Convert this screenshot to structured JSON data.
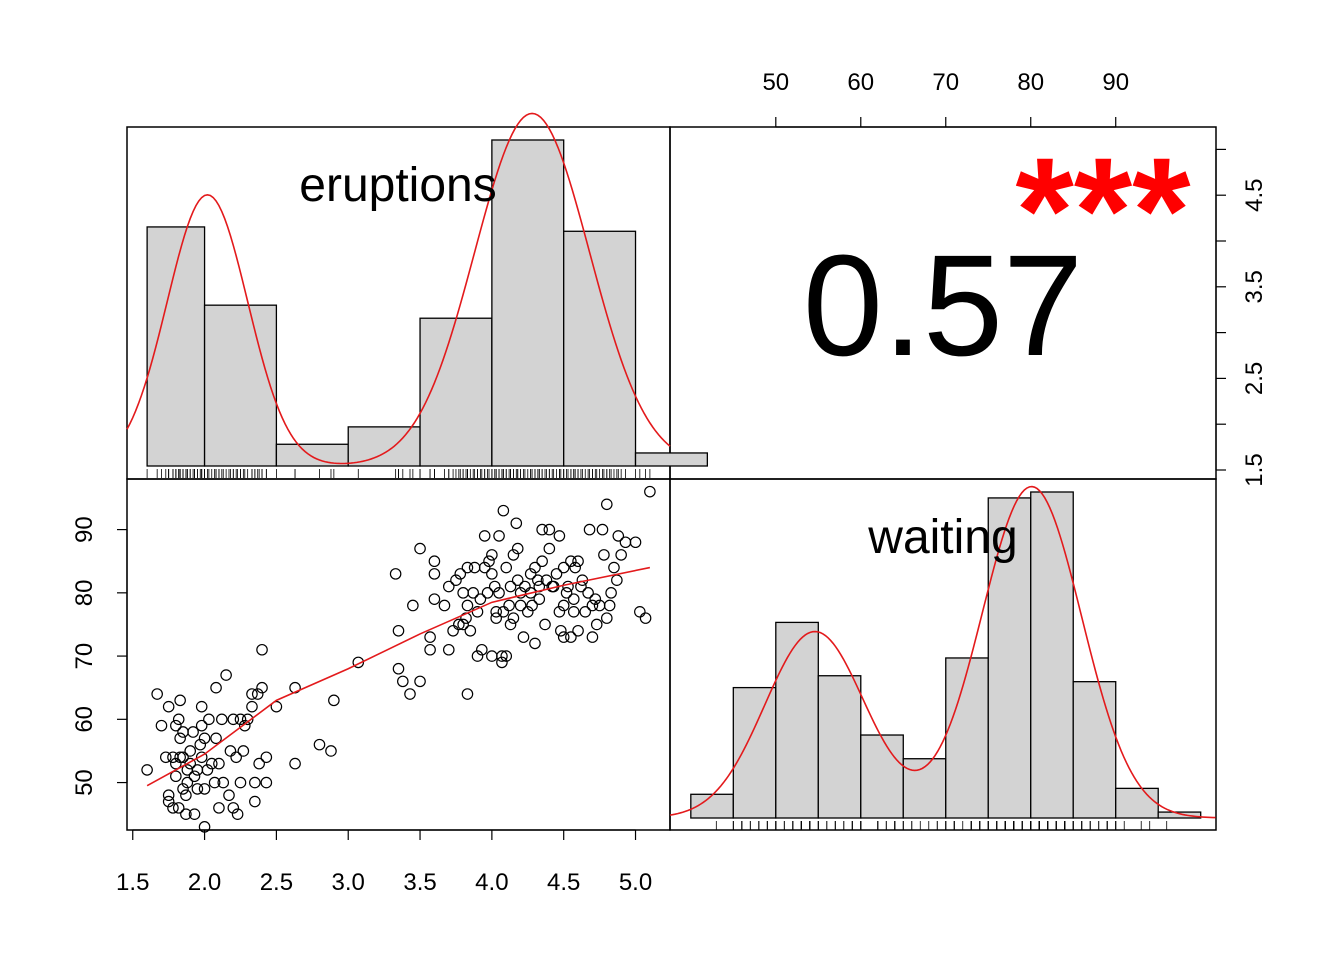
{
  "chart_data": [
    {
      "panel": "eruptions-histogram",
      "type": "bar",
      "label": "eruptions",
      "bin_edges": [
        1.6,
        2.0,
        2.5,
        3.0,
        3.5,
        4.0,
        4.5,
        5.0,
        5.5
      ],
      "counts": [
        55,
        37,
        5,
        9,
        34,
        75,
        54,
        3
      ],
      "density_curve_color": "#e31a1c",
      "rug": true
    },
    {
      "panel": "correlation",
      "type": "table",
      "value": "0.57",
      "significance": "***",
      "significance_color": "#ff0000"
    },
    {
      "panel": "scatter",
      "type": "scatter",
      "x_variable": "eruptions",
      "y_variable": "waiting",
      "x_ticks": [
        "1.5",
        "2.0",
        "2.5",
        "3.0",
        "3.5",
        "4.0",
        "4.5",
        "5.0"
      ],
      "y_ticks": [
        "50",
        "60",
        "70",
        "80",
        "90"
      ],
      "xlim": [
        1.46,
        5.24
      ],
      "ylim": [
        42.5,
        98.0
      ],
      "points": [
        [
          1.6,
          52
        ],
        [
          1.67,
          64
        ],
        [
          1.7,
          59
        ],
        [
          1.73,
          54
        ],
        [
          1.75,
          48
        ],
        [
          1.75,
          47
        ],
        [
          1.75,
          62
        ],
        [
          1.78,
          54
        ],
        [
          1.78,
          46
        ],
        [
          1.8,
          51
        ],
        [
          1.8,
          53
        ],
        [
          1.8,
          59
        ],
        [
          1.82,
          46
        ],
        [
          1.82,
          60
        ],
        [
          1.83,
          54
        ],
        [
          1.83,
          57
        ],
        [
          1.83,
          63
        ],
        [
          1.85,
          58
        ],
        [
          1.85,
          54
        ],
        [
          1.85,
          49
        ],
        [
          1.87,
          45
        ],
        [
          1.87,
          48
        ],
        [
          1.88,
          52
        ],
        [
          1.88,
          50
        ],
        [
          1.9,
          55
        ],
        [
          1.9,
          53
        ],
        [
          1.92,
          58
        ],
        [
          1.93,
          51
        ],
        [
          1.93,
          45
        ],
        [
          1.95,
          49
        ],
        [
          1.95,
          52
        ],
        [
          1.97,
          56
        ],
        [
          1.98,
          54
        ],
        [
          1.98,
          59
        ],
        [
          1.98,
          62
        ],
        [
          2.0,
          57
        ],
        [
          2.0,
          43
        ],
        [
          2.0,
          49
        ],
        [
          2.02,
          52
        ],
        [
          2.03,
          60
        ],
        [
          2.05,
          53
        ],
        [
          2.07,
          50
        ],
        [
          2.08,
          65
        ],
        [
          2.08,
          57
        ],
        [
          2.1,
          53
        ],
        [
          2.1,
          46
        ],
        [
          2.12,
          60
        ],
        [
          2.13,
          50
        ],
        [
          2.15,
          67
        ],
        [
          2.17,
          48
        ],
        [
          2.18,
          55
        ],
        [
          2.2,
          46
        ],
        [
          2.2,
          60
        ],
        [
          2.22,
          54
        ],
        [
          2.23,
          45
        ],
        [
          2.25,
          60
        ],
        [
          2.25,
          50
        ],
        [
          2.27,
          55
        ],
        [
          2.28,
          59
        ],
        [
          2.3,
          60
        ],
        [
          2.33,
          62
        ],
        [
          2.33,
          64
        ],
        [
          2.35,
          50
        ],
        [
          2.35,
          47
        ],
        [
          2.37,
          64
        ],
        [
          2.38,
          53
        ],
        [
          2.4,
          71
        ],
        [
          2.4,
          65
        ],
        [
          2.43,
          54
        ],
        [
          2.43,
          50
        ],
        [
          2.5,
          62
        ],
        [
          2.63,
          53
        ],
        [
          2.63,
          65
        ],
        [
          2.8,
          56
        ],
        [
          2.88,
          55
        ],
        [
          2.9,
          63
        ],
        [
          3.07,
          69
        ],
        [
          3.33,
          83
        ],
        [
          3.35,
          68
        ],
        [
          3.35,
          74
        ],
        [
          3.38,
          66
        ],
        [
          3.43,
          64
        ],
        [
          3.45,
          78
        ],
        [
          3.5,
          87
        ],
        [
          3.5,
          66
        ],
        [
          3.57,
          73
        ],
        [
          3.57,
          71
        ],
        [
          3.6,
          79
        ],
        [
          3.6,
          83
        ],
        [
          3.6,
          85
        ],
        [
          3.67,
          78
        ],
        [
          3.7,
          81
        ],
        [
          3.7,
          71
        ],
        [
          3.73,
          74
        ],
        [
          3.75,
          82
        ],
        [
          3.77,
          75
        ],
        [
          3.78,
          83
        ],
        [
          3.8,
          80
        ],
        [
          3.8,
          75
        ],
        [
          3.82,
          76
        ],
        [
          3.83,
          64
        ],
        [
          3.83,
          78
        ],
        [
          3.83,
          84
        ],
        [
          3.85,
          74
        ],
        [
          3.87,
          80
        ],
        [
          3.88,
          84
        ],
        [
          3.9,
          70
        ],
        [
          3.9,
          77
        ],
        [
          3.92,
          79
        ],
        [
          3.93,
          71
        ],
        [
          3.95,
          84
        ],
        [
          3.95,
          89
        ],
        [
          3.97,
          80
        ],
        [
          3.98,
          85
        ],
        [
          4.0,
          70
        ],
        [
          4.0,
          86
        ],
        [
          4.0,
          83
        ],
        [
          4.02,
          81
        ],
        [
          4.03,
          77
        ],
        [
          4.03,
          76
        ],
        [
          4.05,
          80
        ],
        [
          4.05,
          89
        ],
        [
          4.07,
          69
        ],
        [
          4.07,
          70
        ],
        [
          4.08,
          93
        ],
        [
          4.08,
          77
        ],
        [
          4.1,
          84
        ],
        [
          4.1,
          70
        ],
        [
          4.12,
          78
        ],
        [
          4.13,
          75
        ],
        [
          4.13,
          81
        ],
        [
          4.15,
          86
        ],
        [
          4.15,
          76
        ],
        [
          4.17,
          91
        ],
        [
          4.18,
          87
        ],
        [
          4.18,
          82
        ],
        [
          4.2,
          78
        ],
        [
          4.2,
          80
        ],
        [
          4.22,
          73
        ],
        [
          4.23,
          81
        ],
        [
          4.25,
          77
        ],
        [
          4.27,
          83
        ],
        [
          4.27,
          80
        ],
        [
          4.28,
          78
        ],
        [
          4.3,
          84
        ],
        [
          4.3,
          72
        ],
        [
          4.32,
          82
        ],
        [
          4.33,
          79
        ],
        [
          4.33,
          81
        ],
        [
          4.35,
          85
        ],
        [
          4.35,
          90
        ],
        [
          4.37,
          75
        ],
        [
          4.38,
          82
        ],
        [
          4.4,
          90
        ],
        [
          4.4,
          87
        ],
        [
          4.42,
          81
        ],
        [
          4.43,
          81
        ],
        [
          4.45,
          83
        ],
        [
          4.47,
          89
        ],
        [
          4.47,
          77
        ],
        [
          4.48,
          74
        ],
        [
          4.5,
          73
        ],
        [
          4.5,
          78
        ],
        [
          4.5,
          84
        ],
        [
          4.52,
          80
        ],
        [
          4.53,
          81
        ],
        [
          4.55,
          85
        ],
        [
          4.55,
          73
        ],
        [
          4.57,
          79
        ],
        [
          4.57,
          77
        ],
        [
          4.58,
          84
        ],
        [
          4.6,
          85
        ],
        [
          4.6,
          74
        ],
        [
          4.62,
          81
        ],
        [
          4.63,
          82
        ],
        [
          4.65,
          77
        ],
        [
          4.67,
          80
        ],
        [
          4.68,
          90
        ],
        [
          4.7,
          78
        ],
        [
          4.7,
          73
        ],
        [
          4.72,
          79
        ],
        [
          4.73,
          75
        ],
        [
          4.75,
          78
        ],
        [
          4.77,
          90
        ],
        [
          4.78,
          86
        ],
        [
          4.8,
          94
        ],
        [
          4.8,
          76
        ],
        [
          4.82,
          78
        ],
        [
          4.83,
          80
        ],
        [
          4.85,
          84
        ],
        [
          4.87,
          82
        ],
        [
          4.88,
          89
        ],
        [
          4.9,
          86
        ],
        [
          4.93,
          88
        ],
        [
          5.0,
          88
        ],
        [
          5.03,
          77
        ],
        [
          5.07,
          76
        ],
        [
          5.1,
          96
        ]
      ],
      "smooth_line": [
        [
          1.6,
          49.5
        ],
        [
          2.0,
          54.5
        ],
        [
          2.5,
          63.0
        ],
        [
          3.0,
          68.0
        ],
        [
          3.5,
          73.5
        ],
        [
          4.0,
          78.5
        ],
        [
          4.5,
          81.2
        ],
        [
          5.1,
          84.0
        ]
      ],
      "smooth_color": "#e31a1c"
    },
    {
      "panel": "waiting-histogram",
      "type": "bar",
      "label": "waiting",
      "bin_edges": [
        40,
        45,
        50,
        55,
        60,
        65,
        70,
        75,
        80,
        85,
        90,
        95,
        100
      ],
      "counts": [
        4,
        22,
        33,
        24,
        14,
        10,
        27,
        54,
        55,
        23,
        5,
        1
      ],
      "density_curve_color": "#e31a1c",
      "rug": true
    },
    {
      "panel": "top-axis",
      "ticks": [
        "50",
        "60",
        "70",
        "80",
        "90"
      ]
    },
    {
      "panel": "right-axis",
      "ticks": [
        "1.5",
        "2.5",
        "3.5",
        "4.5"
      ]
    }
  ]
}
